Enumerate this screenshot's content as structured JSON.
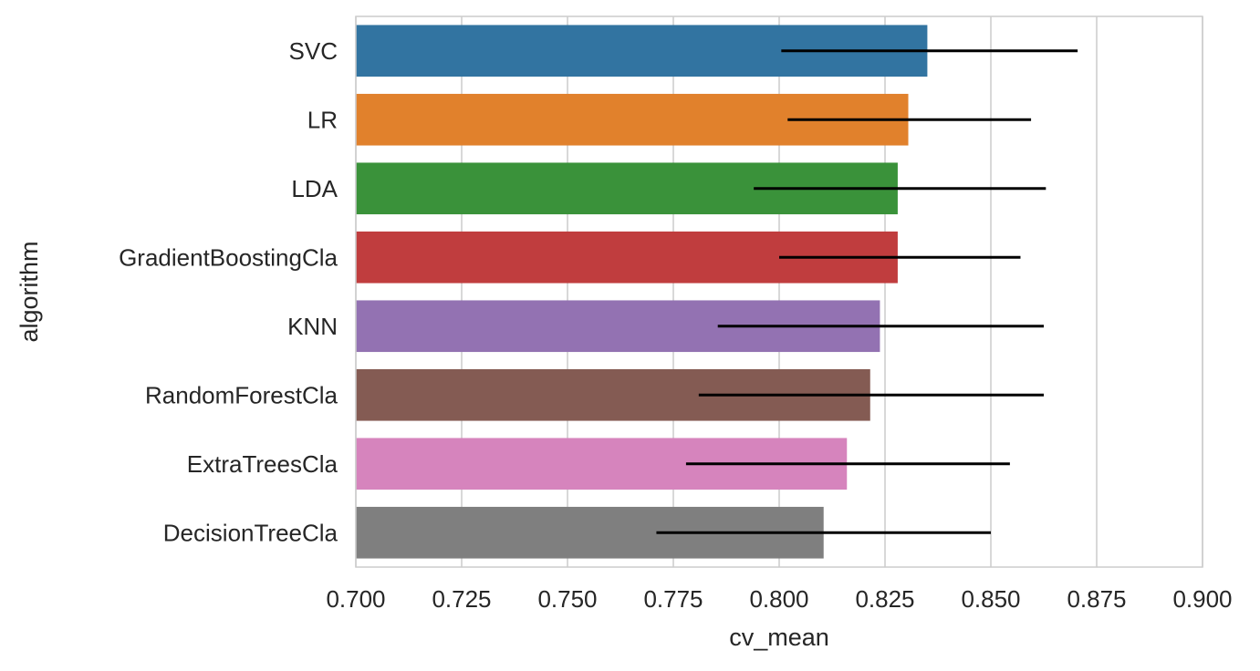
{
  "chart_data": {
    "type": "bar",
    "orientation": "horizontal",
    "xlabel": "cv_mean",
    "ylabel": "algorithm",
    "xlim": [
      0.7,
      0.9
    ],
    "xticks": [
      "0.700",
      "0.725",
      "0.750",
      "0.775",
      "0.800",
      "0.825",
      "0.850",
      "0.875",
      "0.900"
    ],
    "grid": true,
    "categories": [
      "SVC",
      "LR",
      "LDA",
      "GradientBoostingCla",
      "KNN",
      "RandomForestCla",
      "ExtraTreesCla",
      "DecisionTreeCla"
    ],
    "values": [
      0.835,
      0.8305,
      0.828,
      0.828,
      0.8238,
      0.8215,
      0.816,
      0.8105
    ],
    "error_low": [
      0.8005,
      0.802,
      0.794,
      0.8,
      0.7855,
      0.781,
      0.778,
      0.771
    ],
    "error_high": [
      0.8705,
      0.8595,
      0.863,
      0.857,
      0.8625,
      0.8625,
      0.8545,
      0.85
    ],
    "colors": [
      "#3274a1",
      "#e1812c",
      "#3a923a",
      "#c03d3e",
      "#9372b2",
      "#845b53",
      "#d684bd",
      "#7f7f7f"
    ],
    "error_color": "#000000"
  }
}
